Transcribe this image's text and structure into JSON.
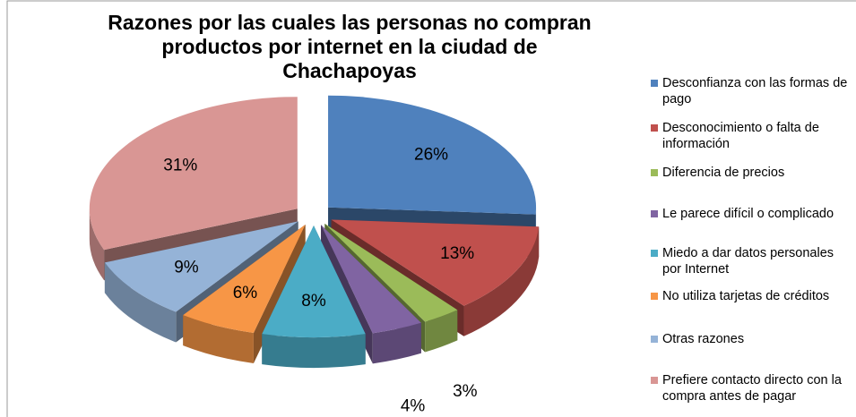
{
  "chart_data": {
    "type": "pie3d",
    "title": "Razones por las cuales las personas no compran productos por internet en la ciudad de Chachapoyas",
    "categories": [
      "Desconfianza con las formas de pago",
      "Desconocimiento o falta de información",
      "Diferencia de precios",
      "Le parece difícil o complicado",
      "Miedo a dar datos personales por Internet",
      "No utiliza tarjetas de créditos",
      "Otras razones",
      "Prefiere contacto directo con la compra antes de pagar"
    ],
    "values": [
      26,
      13,
      3,
      4,
      8,
      6,
      9,
      31
    ],
    "value_labels": [
      "26%",
      "13%",
      "3%",
      "4%",
      "8%",
      "6%",
      "9%",
      "31%"
    ],
    "colors": [
      "#4f81bd",
      "#c0504d",
      "#9bbb59",
      "#8064a2",
      "#4bacc6",
      "#f79646",
      "#95b3d7",
      "#d99694"
    ],
    "legend": "right"
  }
}
